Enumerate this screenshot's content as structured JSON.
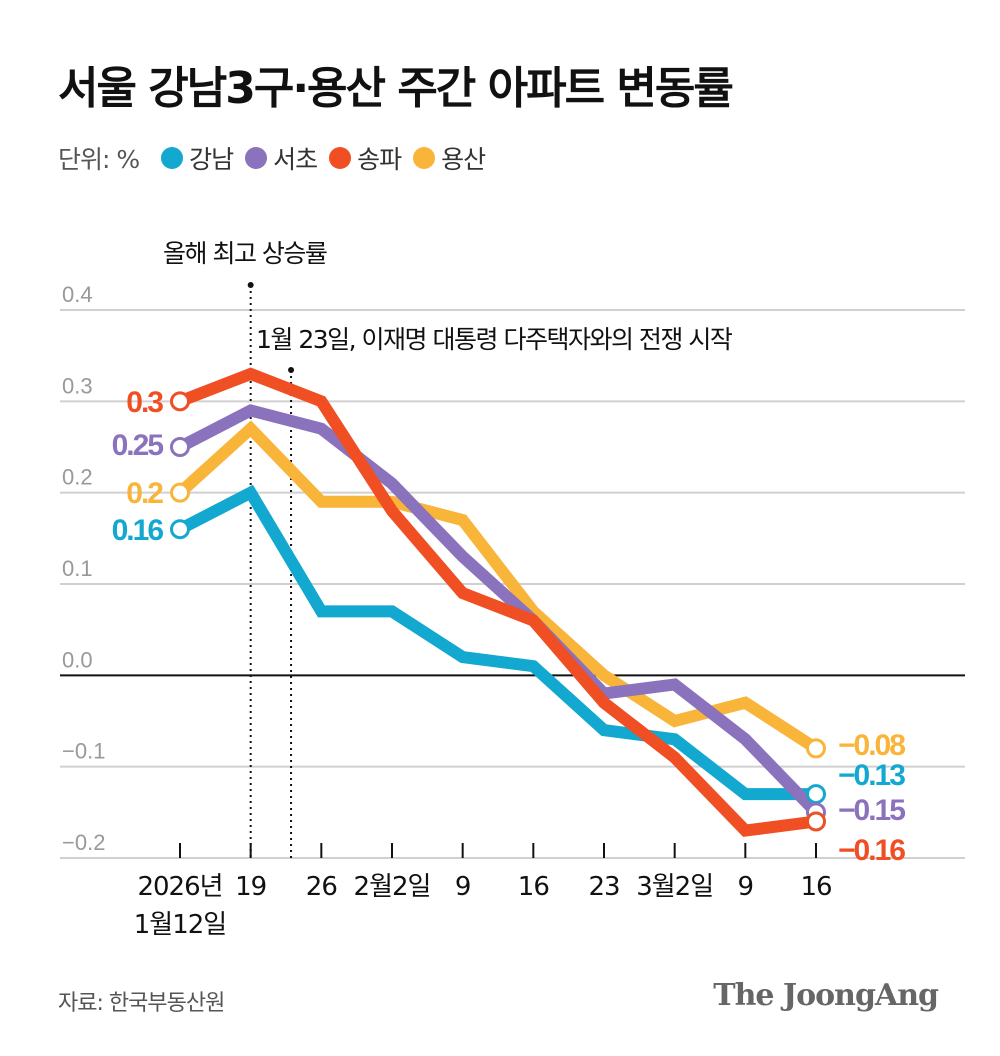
{
  "chart_data": {
    "type": "line",
    "title": "서울 강남3구·용산 주간 아파트 변동률",
    "unit_label": "단위: %",
    "categories": [
      "2026년 1월12일",
      "19",
      "26",
      "2월2일",
      "9",
      "16",
      "23",
      "3월2일",
      "9",
      "16"
    ],
    "category_lines": [
      [
        "2026년",
        "1월12일"
      ],
      [
        "19"
      ],
      [
        "26"
      ],
      [
        "2월2일"
      ],
      [
        "9"
      ],
      [
        "16"
      ],
      [
        "23"
      ],
      [
        "3월2일"
      ],
      [
        "9"
      ],
      [
        "16"
      ]
    ],
    "ylim": [
      -0.2,
      0.4
    ],
    "yticks": [
      "0.4",
      "0.3",
      "0.2",
      "0.1",
      "0.0",
      "−0.1",
      "−0.2"
    ],
    "ytick_values": [
      0.4,
      0.3,
      0.2,
      0.1,
      0.0,
      -0.1,
      -0.2
    ],
    "grid": true,
    "legend_position": "top-left",
    "series": [
      {
        "name": "강남",
        "color": "#13a8cf",
        "values": [
          0.16,
          0.2,
          0.07,
          0.07,
          0.02,
          0.01,
          -0.06,
          -0.07,
          -0.13,
          -0.13
        ],
        "start_label": "0.16",
        "end_label": "−0.13"
      },
      {
        "name": "서초",
        "color": "#8b72bc",
        "values": [
          0.25,
          0.29,
          0.27,
          0.21,
          0.13,
          0.06,
          -0.02,
          -0.01,
          -0.07,
          -0.15
        ],
        "start_label": "0.25",
        "end_label": "−0.15"
      },
      {
        "name": "송파",
        "color": "#f04e23",
        "values": [
          0.3,
          0.33,
          0.3,
          0.18,
          0.09,
          0.06,
          -0.03,
          -0.09,
          -0.17,
          -0.16
        ],
        "start_label": "0.3",
        "end_label": "−0.16"
      },
      {
        "name": "용산",
        "color": "#f9b43a",
        "values": [
          0.2,
          0.27,
          0.19,
          0.19,
          0.17,
          0.07,
          0.0,
          -0.05,
          -0.03,
          -0.08
        ],
        "start_label": "0.2",
        "end_label": "−0.08"
      }
    ],
    "annotations": [
      {
        "text": "올해 최고 상승률",
        "at_category": "19"
      },
      {
        "text": "1월 23일, 이재명 대통령 다주택자와의 전쟁 시작",
        "at_date": "1월 23일"
      }
    ]
  },
  "footer": {
    "source": "자료: 한국부동산원",
    "logo": "The JoongAng"
  }
}
